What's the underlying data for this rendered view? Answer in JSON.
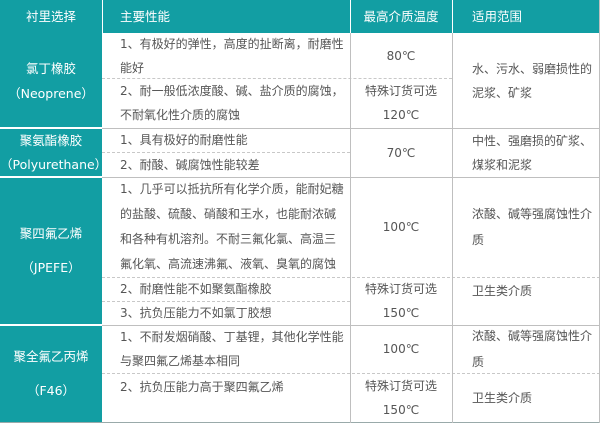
{
  "header": [
    "衬里选择",
    "主要性能",
    "最高介质温度",
    "适用范围"
  ],
  "rows": [
    {
      "lining": "氯丁橡胶\n（Neoprene）",
      "props": [
        "1、有极好的弹性，高度的扯断离，耐磨性\n能好",
        "2、耐一般低浓度酸、碱、盐介质的腐蚀，\n不耐氧化性介质的腐蚀"
      ],
      "temps": [
        "80℃",
        "特殊订货可选\n120℃"
      ],
      "range": [
        "水、污水、弱磨损性的\n泥浆、矿浆"
      ]
    },
    {
      "lining": "聚氨酯橡胶\n（Polyurethane）",
      "props": [
        "1、具有极好的耐磨性能",
        "2、耐酸、碱腐蚀性能较差"
      ],
      "temps": [
        "70℃"
      ],
      "range": [
        "中性、强磨损的矿浆、\n煤浆和泥浆"
      ]
    },
    {
      "lining": "聚四氟乙烯\n（JPEFE）",
      "props": [
        "1、几乎可以抵抗所有化学介质，能耐妃糖\n的盐酸、硫酸、硝酸和王水，也能耐浓碱\n和各种有机溶剂。不耐三氟化氯、高温三\n氟化氧、高流速沸氟、液氧、臭氧的腐蚀",
        "2、耐磨性能不如聚氨酯橡胶",
        "3、抗负压能力不如氯丁胶想"
      ],
      "temps": [
        "100℃",
        "特殊订货可选\n150℃"
      ],
      "range": [
        "浓酸、碱等强腐蚀性介\n质",
        "卫生类介质"
      ]
    },
    {
      "lining": "聚全氟乙丙烯\n（F46）",
      "props": [
        "1、不耐发烟硝酸、丁基锂，其他化学性能\n与聚四氟乙烯基本相同",
        "2、抗负压能力高于聚四氟乙烯"
      ],
      "temps": [
        "100℃",
        "特殊订货可选\n150℃"
      ],
      "range": [
        "浓酸、碱等强腐蚀性介\n质",
        "卫生类介质"
      ]
    }
  ],
  "colors": {
    "teal": "#129ea3",
    "text": "#555555",
    "border": "#bfbfbf"
  }
}
